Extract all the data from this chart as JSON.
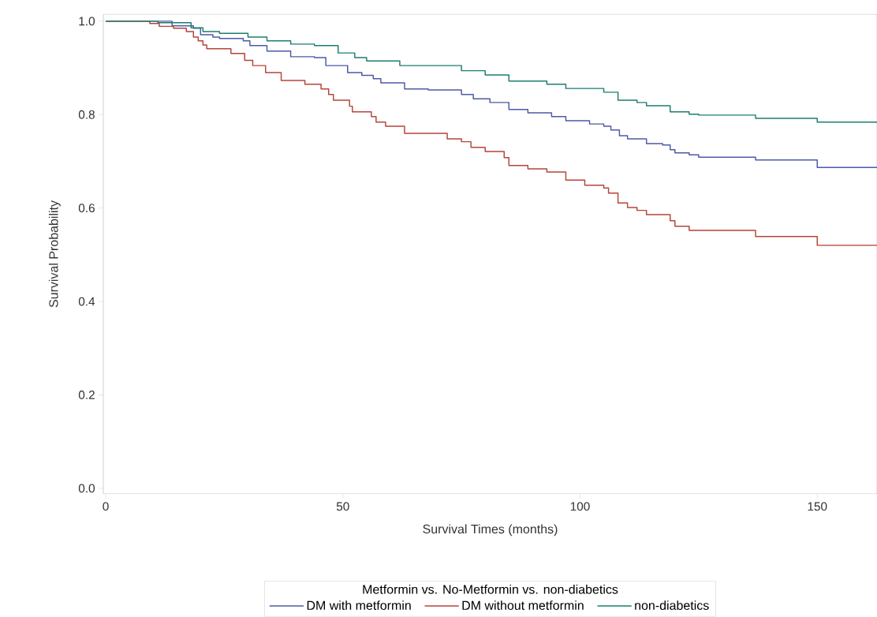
{
  "chart_data": {
    "type": "step",
    "xlabel": "Survival Times (months)",
    "ylabel": "Survival Probability",
    "legend_title": "Metformin vs. No-Metformin vs. non-diabetics",
    "legend": "bottom",
    "xlim": [
      -0.5,
      162.6
    ],
    "ylim": [
      -0.012,
      1.015
    ],
    "xticks": [
      0,
      50,
      100,
      150
    ],
    "yticks": [
      {
        "value": 0,
        "label": "0.0"
      },
      {
        "value": 0.2,
        "label": "0.2"
      },
      {
        "value": 0.4,
        "label": "0.4"
      },
      {
        "value": 0.6,
        "label": "0.6"
      },
      {
        "value": 0.8,
        "label": "0.8"
      },
      {
        "value": 1,
        "label": "1.0"
      }
    ],
    "series": [
      {
        "name": "DM with metformin",
        "color": "#4b5aa8",
        "x": [
          0,
          14,
          18.5,
          20,
          22.6,
          24,
          29,
          30.4,
          34,
          39,
          44,
          46.4,
          51,
          54,
          56.4,
          58,
          63,
          68,
          75,
          77.5,
          81,
          85,
          89,
          94,
          97,
          102,
          105,
          106.5,
          108.3,
          110,
          114,
          117.4,
          119,
          120,
          123,
          125,
          137,
          150,
          162.6
        ],
        "values": [
          1,
          0.99,
          0.985,
          0.971,
          0.966,
          0.963,
          0.958,
          0.948,
          0.936,
          0.924,
          0.922,
          0.905,
          0.89,
          0.884,
          0.877,
          0.868,
          0.855,
          0.853,
          0.843,
          0.834,
          0.826,
          0.811,
          0.804,
          0.796,
          0.787,
          0.78,
          0.775,
          0.767,
          0.755,
          0.748,
          0.738,
          0.735,
          0.725,
          0.718,
          0.714,
          0.709,
          0.703,
          0.687,
          0.687
        ]
      },
      {
        "name": "DM without metformin",
        "color": "#b5443a",
        "x": [
          0,
          9.3,
          11.3,
          14.3,
          17,
          18.5,
          19.5,
          20.5,
          21.3,
          26.4,
          29.3,
          31,
          33.7,
          37,
          42,
          45.4,
          47,
          48,
          51.4,
          52,
          56,
          57,
          59,
          63,
          72,
          75,
          77,
          80,
          84,
          85,
          89,
          93,
          97,
          101,
          105,
          106,
          108,
          110,
          112,
          114,
          119,
          120,
          123,
          137,
          150,
          162.6
        ],
        "values": [
          1,
          0.995,
          0.989,
          0.985,
          0.978,
          0.966,
          0.958,
          0.949,
          0.941,
          0.931,
          0.916,
          0.905,
          0.89,
          0.873,
          0.865,
          0.855,
          0.843,
          0.831,
          0.818,
          0.806,
          0.796,
          0.784,
          0.775,
          0.76,
          0.748,
          0.742,
          0.73,
          0.721,
          0.708,
          0.691,
          0.684,
          0.677,
          0.66,
          0.649,
          0.643,
          0.632,
          0.611,
          0.601,
          0.595,
          0.586,
          0.573,
          0.561,
          0.552,
          0.539,
          0.52,
          0.52
        ]
      },
      {
        "name": "non-diabetics",
        "color": "#1b7f6e",
        "x": [
          0,
          11,
          18,
          20.5,
          24,
          30,
          34,
          39,
          44,
          49,
          52.5,
          55,
          62,
          75,
          80,
          85,
          93,
          97,
          105,
          108,
          112,
          114,
          119,
          123,
          125,
          137,
          150,
          162.6
        ],
        "values": [
          1,
          0.997,
          0.986,
          0.978,
          0.974,
          0.966,
          0.958,
          0.951,
          0.948,
          0.932,
          0.922,
          0.915,
          0.905,
          0.894,
          0.885,
          0.872,
          0.865,
          0.856,
          0.848,
          0.831,
          0.826,
          0.819,
          0.806,
          0.801,
          0.799,
          0.792,
          0.784,
          0.784
        ]
      }
    ]
  }
}
